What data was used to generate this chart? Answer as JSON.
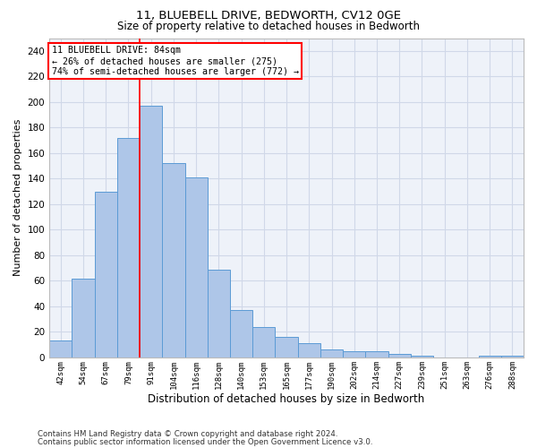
{
  "title_line1": "11, BLUEBELL DRIVE, BEDWORTH, CV12 0GE",
  "title_line2": "Size of property relative to detached houses in Bedworth",
  "xlabel": "Distribution of detached houses by size in Bedworth",
  "ylabel": "Number of detached properties",
  "categories": [
    "42sqm",
    "54sqm",
    "67sqm",
    "79sqm",
    "91sqm",
    "104sqm",
    "116sqm",
    "128sqm",
    "140sqm",
    "153sqm",
    "165sqm",
    "177sqm",
    "190sqm",
    "202sqm",
    "214sqm",
    "227sqm",
    "239sqm",
    "251sqm",
    "263sqm",
    "276sqm",
    "288sqm"
  ],
  "values": [
    13,
    62,
    130,
    172,
    197,
    152,
    141,
    69,
    37,
    24,
    16,
    11,
    6,
    5,
    5,
    3,
    1,
    0,
    0,
    1,
    1
  ],
  "bar_color": "#aec6e8",
  "bar_edgecolor": "#5b9bd5",
  "grid_color": "#d0d8e8",
  "background_color": "#eef2f9",
  "annotation_box_text": "11 BLUEBELL DRIVE: 84sqm\n← 26% of detached houses are smaller (275)\n74% of semi-detached houses are larger (772) →",
  "annotation_box_edgecolor": "red",
  "redline_x": 3.5,
  "ylim": [
    0,
    250
  ],
  "yticks": [
    0,
    20,
    40,
    60,
    80,
    100,
    120,
    140,
    160,
    180,
    200,
    220,
    240
  ],
  "footer_line1": "Contains HM Land Registry data © Crown copyright and database right 2024.",
  "footer_line2": "Contains public sector information licensed under the Open Government Licence v3.0."
}
